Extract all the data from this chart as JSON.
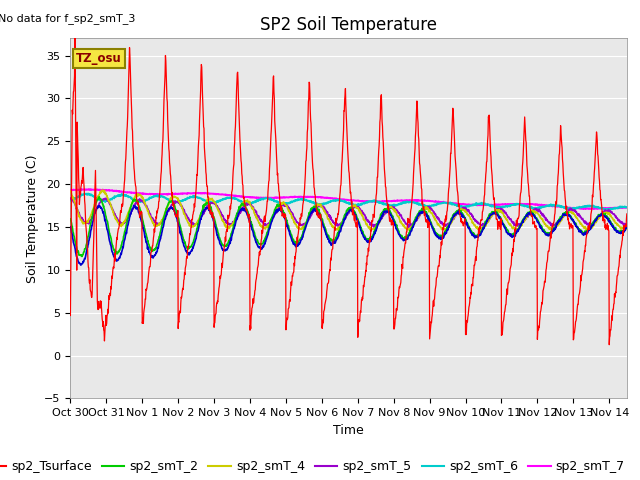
{
  "title": "SP2 Soil Temperature",
  "xlabel": "Time",
  "ylabel": "Soil Temperature (C)",
  "no_data_text": "No data for f_sp2_smT_3",
  "tz_label": "TZ_osu",
  "ylim": [
    -5,
    37
  ],
  "yticks": [
    -5,
    0,
    5,
    10,
    15,
    20,
    25,
    30,
    35
  ],
  "xtick_labels": [
    "Oct 30",
    "Oct 31",
    "Nov 1",
    "Nov 2",
    "Nov 3",
    "Nov 4",
    "Nov 5",
    "Nov 6",
    "Nov 7",
    "Nov 8",
    "Nov 9",
    "Nov 10",
    "Nov 11",
    "Nov 12",
    "Nov 13",
    "Nov 14"
  ],
  "series_colors": {
    "sp2_Tsurface": "#ff0000",
    "sp2_smT_1": "#0000cc",
    "sp2_smT_2": "#00cc00",
    "sp2_smT_4": "#cccc00",
    "sp2_smT_5": "#9900cc",
    "sp2_smT_6": "#00cccc",
    "sp2_smT_7": "#ff00ff"
  },
  "plot_bg_color": "#e8e8e8",
  "fig_bg_color": "#ffffff",
  "grid_color": "#ffffff",
  "title_fontsize": 12,
  "axis_label_fontsize": 9,
  "tick_fontsize": 8,
  "legend_fontsize": 9
}
